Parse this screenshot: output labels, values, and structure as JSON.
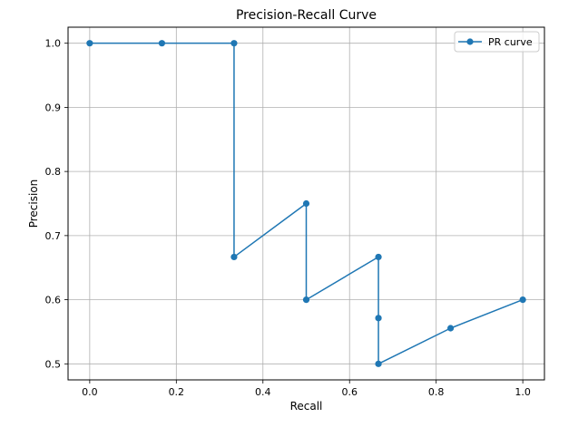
{
  "chart_data": {
    "type": "line",
    "title": "Precision-Recall Curve",
    "xlabel": "Recall",
    "ylabel": "Precision",
    "xlim": [
      -0.05,
      1.05
    ],
    "ylim": [
      0.475,
      1.025
    ],
    "xticks": [
      0.0,
      0.2,
      0.4,
      0.6,
      0.8,
      1.0
    ],
    "xtick_labels": [
      "0.0",
      "0.2",
      "0.4",
      "0.6",
      "0.8",
      "1.0"
    ],
    "yticks": [
      0.5,
      0.6,
      0.7,
      0.8,
      0.9,
      1.0
    ],
    "ytick_labels": [
      "0.5",
      "0.6",
      "0.7",
      "0.8",
      "0.9",
      "1.0"
    ],
    "grid": true,
    "legend_position": "top-right",
    "series": [
      {
        "name": "PR curve",
        "color": "#1f77b4",
        "marker": "circle",
        "x": [
          0.0,
          0.1667,
          0.3333,
          0.3333,
          0.5,
          0.5,
          0.6667,
          0.6667,
          0.6667,
          0.8333,
          1.0
        ],
        "y": [
          1.0,
          1.0,
          1.0,
          0.6667,
          0.75,
          0.6,
          0.6667,
          0.5714,
          0.5,
          0.5556,
          0.6
        ]
      }
    ]
  }
}
